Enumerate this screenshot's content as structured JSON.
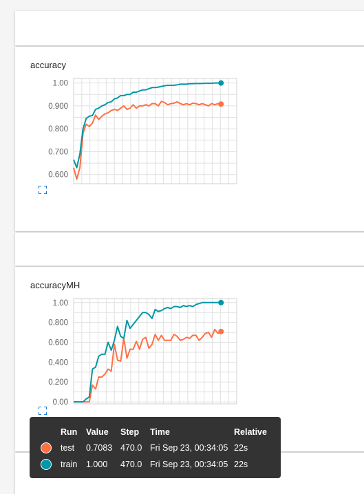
{
  "cards": {
    "accuracy": {
      "title": "accuracy",
      "expand_icon": "fullscreen-icon"
    },
    "accuracyMH": {
      "title": "accuracyMH",
      "expand_icon": "fullscreen-icon"
    }
  },
  "colors": {
    "test": "#ff7043",
    "train": "#0097a7",
    "grid": "#e0e0e0",
    "axis_text": "#616161",
    "tooltip_bg": "#333333"
  },
  "chart_data": [
    {
      "type": "line",
      "title": "accuracy",
      "ylim": [
        0.56,
        1.02
      ],
      "xlim": [
        0,
        520
      ],
      "yticks": [
        "1.00",
        "0.900",
        "0.800",
        "0.700",
        "0.600"
      ],
      "ytick_values": [
        1.0,
        0.9,
        0.8,
        0.7,
        0.6
      ],
      "grid": true,
      "series": [
        {
          "name": "train",
          "x": [
            0,
            10,
            20,
            30,
            40,
            50,
            60,
            70,
            80,
            90,
            100,
            110,
            120,
            130,
            140,
            150,
            160,
            170,
            180,
            190,
            200,
            210,
            220,
            230,
            240,
            250,
            260,
            270,
            280,
            290,
            300,
            310,
            320,
            330,
            340,
            350,
            360,
            370,
            380,
            390,
            400,
            410,
            420,
            430,
            440,
            450,
            460,
            470
          ],
          "values": [
            0.665,
            0.63,
            0.69,
            0.8,
            0.845,
            0.855,
            0.858,
            0.885,
            0.89,
            0.9,
            0.905,
            0.915,
            0.918,
            0.93,
            0.935,
            0.945,
            0.945,
            0.95,
            0.95,
            0.96,
            0.96,
            0.965,
            0.97,
            0.97,
            0.975,
            0.98,
            0.98,
            0.982,
            0.985,
            0.988,
            0.99,
            0.99,
            0.99,
            0.992,
            0.995,
            0.995,
            0.995,
            0.997,
            0.997,
            0.998,
            0.998,
            0.998,
            0.999,
            0.999,
            0.999,
            1.0,
            1.0,
            1.0
          ]
        },
        {
          "name": "test",
          "x": [
            0,
            10,
            20,
            30,
            40,
            50,
            60,
            70,
            80,
            90,
            100,
            110,
            120,
            130,
            140,
            150,
            160,
            170,
            180,
            190,
            200,
            210,
            220,
            230,
            240,
            250,
            260,
            270,
            280,
            290,
            300,
            310,
            320,
            330,
            340,
            350,
            360,
            370,
            380,
            390,
            400,
            410,
            420,
            430,
            440,
            450,
            460,
            470
          ],
          "values": [
            0.63,
            0.58,
            0.63,
            0.78,
            0.82,
            0.81,
            0.825,
            0.86,
            0.84,
            0.855,
            0.865,
            0.87,
            0.88,
            0.885,
            0.88,
            0.89,
            0.9,
            0.885,
            0.89,
            0.905,
            0.89,
            0.9,
            0.9,
            0.905,
            0.9,
            0.91,
            0.91,
            0.9,
            0.92,
            0.915,
            0.905,
            0.91,
            0.912,
            0.918,
            0.91,
            0.905,
            0.91,
            0.905,
            0.912,
            0.91,
            0.905,
            0.91,
            0.905,
            0.9,
            0.91,
            0.905,
            0.91,
            0.908
          ]
        }
      ]
    },
    {
      "type": "line",
      "title": "accuracyMH",
      "ylim": [
        -0.02,
        1.04
      ],
      "xlim": [
        0,
        520
      ],
      "yticks": [
        "1.00",
        "0.800",
        "0.600",
        "0.400",
        "0.200",
        "0.00"
      ],
      "ytick_values": [
        1.0,
        0.8,
        0.6,
        0.4,
        0.2,
        0.0
      ],
      "grid": true,
      "series": [
        {
          "name": "train",
          "x": [
            0,
            10,
            20,
            30,
            40,
            50,
            60,
            70,
            80,
            90,
            100,
            110,
            120,
            130,
            140,
            150,
            160,
            170,
            180,
            190,
            200,
            210,
            220,
            230,
            240,
            250,
            260,
            270,
            280,
            290,
            300,
            310,
            320,
            330,
            340,
            350,
            360,
            370,
            380,
            390,
            400,
            410,
            420,
            430,
            440,
            450,
            460,
            470
          ],
          "values": [
            0,
            0,
            0,
            0,
            0.03,
            0.05,
            0.33,
            0.35,
            0.46,
            0.48,
            0.48,
            0.6,
            0.52,
            0.62,
            0.76,
            0.66,
            0.64,
            0.82,
            0.74,
            0.78,
            0.82,
            0.86,
            0.9,
            0.9,
            0.88,
            0.84,
            0.93,
            0.91,
            0.92,
            0.94,
            0.95,
            0.94,
            0.96,
            0.96,
            0.95,
            0.97,
            0.96,
            0.97,
            0.96,
            0.98,
            0.99,
            1.0,
            1.0,
            1.0,
            1.0,
            1.0,
            1.0,
            1.0
          ]
        },
        {
          "name": "test",
          "x": [
            0,
            10,
            20,
            30,
            40,
            50,
            60,
            70,
            80,
            90,
            100,
            110,
            120,
            130,
            140,
            150,
            160,
            170,
            180,
            190,
            200,
            210,
            220,
            230,
            240,
            250,
            260,
            270,
            280,
            290,
            300,
            310,
            320,
            330,
            340,
            350,
            360,
            370,
            380,
            390,
            400,
            410,
            420,
            430,
            440,
            450,
            460,
            470
          ],
          "values": [
            0,
            0,
            0,
            0,
            0,
            0,
            0.17,
            0.13,
            0.25,
            0.25,
            0.28,
            0.33,
            0.31,
            0.58,
            0.42,
            0.41,
            0.64,
            0.44,
            0.53,
            0.53,
            0.61,
            0.53,
            0.63,
            0.65,
            0.54,
            0.58,
            0.68,
            0.62,
            0.67,
            0.62,
            0.62,
            0.62,
            0.68,
            0.66,
            0.62,
            0.63,
            0.65,
            0.64,
            0.67,
            0.67,
            0.62,
            0.65,
            0.69,
            0.7,
            0.65,
            0.73,
            0.69,
            0.7083
          ]
        }
      ]
    }
  ],
  "tooltip": {
    "headers": {
      "run": "Run",
      "value": "Value",
      "step": "Step",
      "time": "Time",
      "relative": "Relative"
    },
    "rows": [
      {
        "run": "test",
        "value": "0.7083",
        "step": "470.0",
        "time": "Fri Sep 23, 00:34:05",
        "relative": "22s"
      },
      {
        "run": "train",
        "value": "1.000",
        "step": "470.0",
        "time": "Fri Sep 23, 00:34:05",
        "relative": "22s"
      }
    ]
  }
}
